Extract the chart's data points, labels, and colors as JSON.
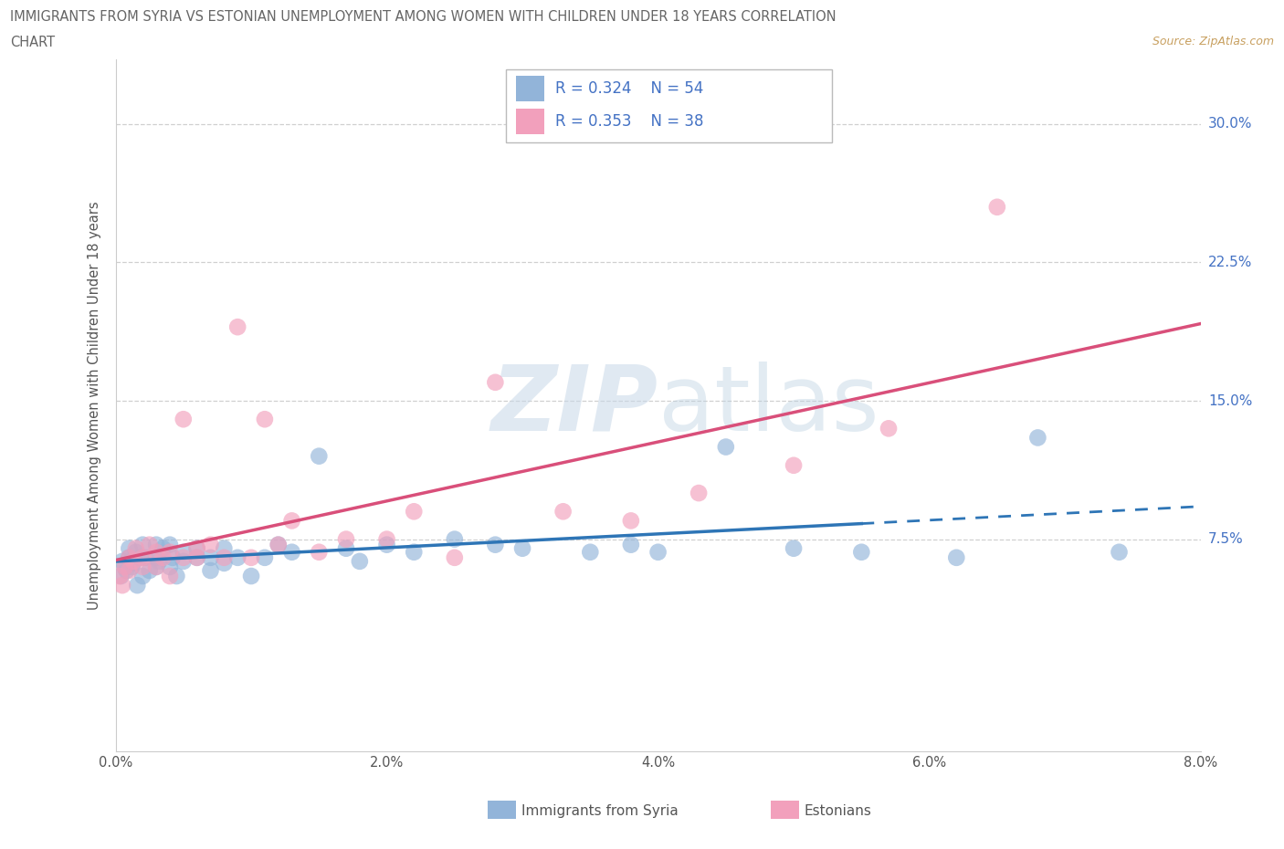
{
  "title_line1": "IMMIGRANTS FROM SYRIA VS ESTONIAN UNEMPLOYMENT AMONG WOMEN WITH CHILDREN UNDER 18 YEARS CORRELATION",
  "title_line2": "CHART",
  "source": "Source: ZipAtlas.com",
  "ylabel": "Unemployment Among Women with Children Under 18 years",
  "xlim": [
    0.0,
    0.08
  ],
  "ylim": [
    -0.04,
    0.335
  ],
  "x_tick_vals": [
    0.0,
    0.02,
    0.04,
    0.06,
    0.08
  ],
  "x_tick_labels": [
    "0.0%",
    "2.0%",
    "4.0%",
    "6.0%",
    "8.0%"
  ],
  "y_tick_vals": [
    0.075,
    0.15,
    0.225,
    0.3
  ],
  "y_tick_labels": [
    "7.5%",
    "15.0%",
    "22.5%",
    "30.0%"
  ],
  "color_syria": "#92b4d9",
  "color_estonia": "#f2a0bc",
  "trendline_color_syria": "#2e75b6",
  "trendline_color_estonia": "#d94f7a",
  "legend_text_color": "#4472c4",
  "legend_R_syria": "0.324",
  "legend_N_syria": "54",
  "legend_R_estonia": "0.353",
  "legend_N_estonia": "38",
  "bottom_legend_syria": "Immigrants from Syria",
  "bottom_legend_estonia": "Estonians",
  "syria_x": [
    0.0004,
    0.0005,
    0.0007,
    0.0008,
    0.001,
    0.001,
    0.0012,
    0.0013,
    0.0015,
    0.0016,
    0.0018,
    0.002,
    0.002,
    0.0022,
    0.0025,
    0.003,
    0.003,
    0.003,
    0.0032,
    0.0035,
    0.004,
    0.004,
    0.0042,
    0.0045,
    0.005,
    0.005,
    0.006,
    0.006,
    0.007,
    0.007,
    0.008,
    0.008,
    0.009,
    0.01,
    0.011,
    0.012,
    0.013,
    0.015,
    0.017,
    0.018,
    0.02,
    0.022,
    0.025,
    0.028,
    0.03,
    0.035,
    0.038,
    0.04,
    0.045,
    0.05,
    0.055,
    0.062,
    0.068,
    0.074
  ],
  "syria_y": [
    0.055,
    0.063,
    0.06,
    0.058,
    0.065,
    0.07,
    0.06,
    0.062,
    0.068,
    0.05,
    0.065,
    0.055,
    0.072,
    0.065,
    0.058,
    0.065,
    0.072,
    0.06,
    0.063,
    0.07,
    0.06,
    0.072,
    0.065,
    0.055,
    0.068,
    0.063,
    0.065,
    0.07,
    0.065,
    0.058,
    0.07,
    0.062,
    0.065,
    0.055,
    0.065,
    0.072,
    0.068,
    0.12,
    0.07,
    0.063,
    0.072,
    0.068,
    0.075,
    0.072,
    0.07,
    0.068,
    0.072,
    0.068,
    0.125,
    0.07,
    0.068,
    0.065,
    0.13,
    0.068
  ],
  "estonia_x": [
    0.0003,
    0.0005,
    0.0007,
    0.001,
    0.001,
    0.0013,
    0.0015,
    0.002,
    0.002,
    0.0025,
    0.003,
    0.003,
    0.0035,
    0.004,
    0.004,
    0.005,
    0.005,
    0.006,
    0.006,
    0.007,
    0.008,
    0.009,
    0.01,
    0.011,
    0.012,
    0.013,
    0.015,
    0.017,
    0.02,
    0.022,
    0.025,
    0.028,
    0.033,
    0.038,
    0.043,
    0.05,
    0.057,
    0.065
  ],
  "estonia_y": [
    0.055,
    0.05,
    0.06,
    0.065,
    0.058,
    0.063,
    0.07,
    0.06,
    0.065,
    0.072,
    0.06,
    0.068,
    0.065,
    0.055,
    0.068,
    0.14,
    0.065,
    0.07,
    0.065,
    0.072,
    0.065,
    0.19,
    0.065,
    0.14,
    0.072,
    0.085,
    0.068,
    0.075,
    0.075,
    0.09,
    0.065,
    0.16,
    0.09,
    0.085,
    0.1,
    0.115,
    0.135,
    0.255
  ]
}
